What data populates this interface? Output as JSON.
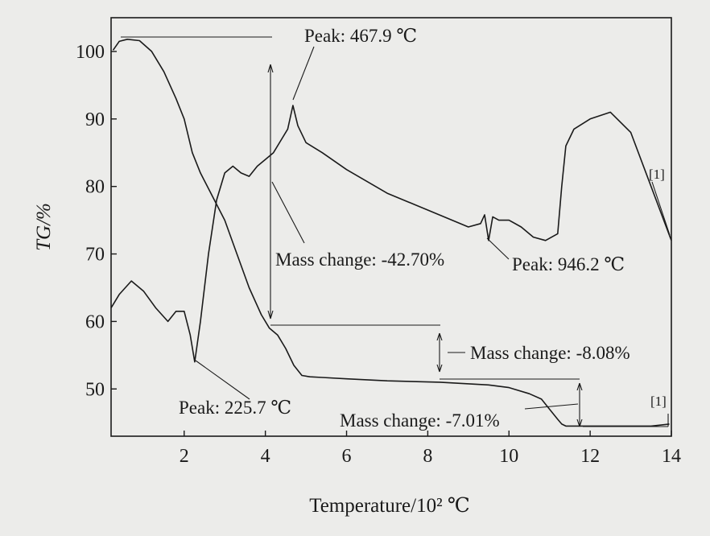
{
  "chart_data": {
    "type": "line",
    "xlabel": "Temperature/10² ℃",
    "ylabel": "TG/%",
    "xlim": [
      0.2,
      14
    ],
    "ylim": [
      43,
      105
    ],
    "x_ticks": [
      2,
      4,
      6,
      8,
      10,
      12,
      14
    ],
    "y_ticks": [
      50,
      60,
      70,
      80,
      90,
      100
    ],
    "grid": false,
    "series": [
      {
        "key": "tg",
        "x": [
          0.25,
          0.4,
          0.6,
          0.9,
          1.2,
          1.5,
          1.8,
          2.0,
          2.2,
          2.4,
          2.7,
          3.0,
          3.3,
          3.6,
          3.9,
          4.1,
          4.3,
          4.5,
          4.7,
          4.9,
          5.1,
          5.4,
          6.0,
          7.0,
          8.3,
          9.5,
          10.0,
          10.5,
          10.8,
          11.0,
          11.2,
          11.3,
          11.4,
          11.6,
          12.0,
          12.5,
          13.0,
          13.5,
          13.95
        ],
        "y": [
          100.2,
          101.5,
          101.8,
          101.6,
          100.0,
          97.0,
          93.0,
          90.0,
          85.0,
          82.0,
          78.5,
          75.0,
          70.0,
          65.0,
          61.0,
          59.0,
          58.0,
          56.0,
          53.5,
          52.0,
          51.8,
          51.7,
          51.5,
          51.2,
          51.0,
          50.6,
          50.2,
          49.3,
          48.5,
          47.0,
          45.5,
          44.8,
          44.5,
          44.5,
          44.5,
          44.5,
          44.5,
          44.5,
          44.8
        ]
      },
      {
        "key": "dta",
        "x": [
          0.2,
          0.4,
          0.7,
          1.0,
          1.3,
          1.6,
          1.8,
          2.0,
          2.15,
          2.26,
          2.4,
          2.6,
          2.8,
          3.0,
          3.2,
          3.4,
          3.6,
          3.8,
          4.0,
          4.2,
          4.4,
          4.55,
          4.68,
          4.8,
          5.0,
          5.4,
          6.0,
          7.0,
          8.0,
          9.0,
          9.3,
          9.4,
          9.5,
          9.6,
          9.75,
          10.0,
          10.3,
          10.6,
          10.9,
          11.2,
          11.3,
          11.4,
          11.6,
          12.0,
          12.5,
          13.0,
          13.5,
          14.0
        ],
        "y": [
          62.0,
          64.0,
          66.0,
          64.5,
          62.0,
          60.0,
          61.5,
          61.5,
          58.0,
          54.0,
          60.0,
          70.0,
          78.0,
          82.0,
          83.0,
          82.0,
          81.5,
          83.0,
          84.0,
          85.0,
          87.0,
          88.5,
          92.0,
          89.0,
          86.5,
          85.0,
          82.5,
          79.0,
          76.5,
          74.0,
          74.5,
          75.8,
          72.0,
          75.5,
          75.0,
          75.0,
          74.0,
          72.5,
          72.0,
          73.0,
          80.0,
          86.0,
          88.5,
          90.0,
          91.0,
          88.0,
          80.0,
          72.0
        ]
      }
    ],
    "annotations": {
      "peak1": "Peak: 467.9 ℃",
      "peak2": "Peak: 946.2 ℃",
      "peak3": "Peak: 225.7 ℃",
      "mass1": "Mass change: -42.70%",
      "mass2": "Mass change: -8.08%",
      "mass3": "Mass change: -7.01%",
      "ref_a": "[1]",
      "ref_b": "[1]"
    }
  }
}
